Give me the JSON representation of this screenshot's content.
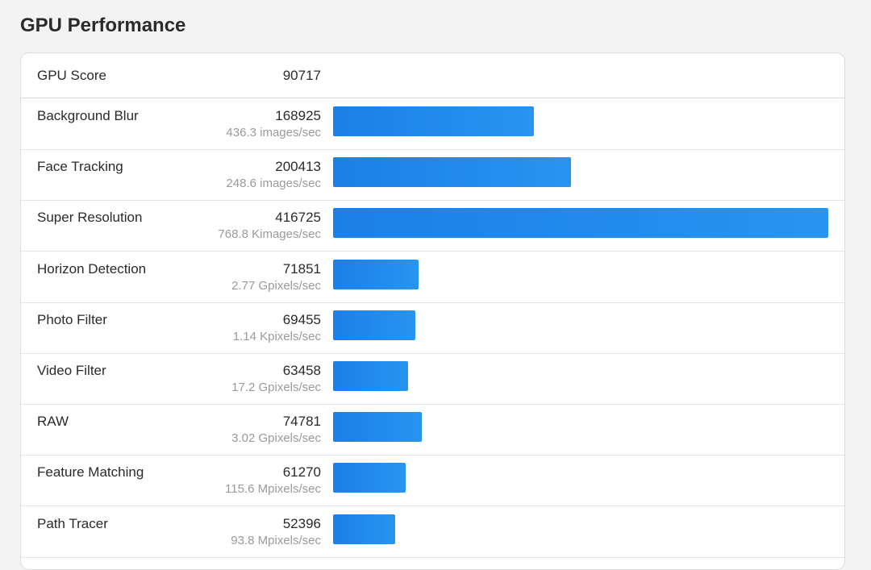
{
  "page": {
    "title": "GPU Performance"
  },
  "score": {
    "label": "GPU Score",
    "value": "90717"
  },
  "colors": {
    "bar_start": "#1b7fe8",
    "bar_end": "#2795f0",
    "rate_text": "#9a9a9a"
  },
  "max_score": 416725,
  "tests": [
    {
      "name": "Background Blur",
      "score": "168925",
      "rate": "436.3 images/sec",
      "value": 168925
    },
    {
      "name": "Face Tracking",
      "score": "200413",
      "rate": "248.6 images/sec",
      "value": 200413
    },
    {
      "name": "Super Resolution",
      "score": "416725",
      "rate": "768.8 Kimages/sec",
      "value": 416725
    },
    {
      "name": "Horizon Detection",
      "score": "71851",
      "rate": "2.77 Gpixels/sec",
      "value": 71851
    },
    {
      "name": "Photo Filter",
      "score": "69455",
      "rate": "1.14 Kpixels/sec",
      "value": 69455
    },
    {
      "name": "Video Filter",
      "score": "63458",
      "rate": "17.2 Gpixels/sec",
      "value": 63458
    },
    {
      "name": "RAW",
      "score": "74781",
      "rate": "3.02 Gpixels/sec",
      "value": 74781
    },
    {
      "name": "Feature Matching",
      "score": "61270",
      "rate": "115.6 Mpixels/sec",
      "value": 61270
    },
    {
      "name": "Path Tracer",
      "score": "52396",
      "rate": "93.8 Mpixels/sec",
      "value": 52396
    }
  ]
}
